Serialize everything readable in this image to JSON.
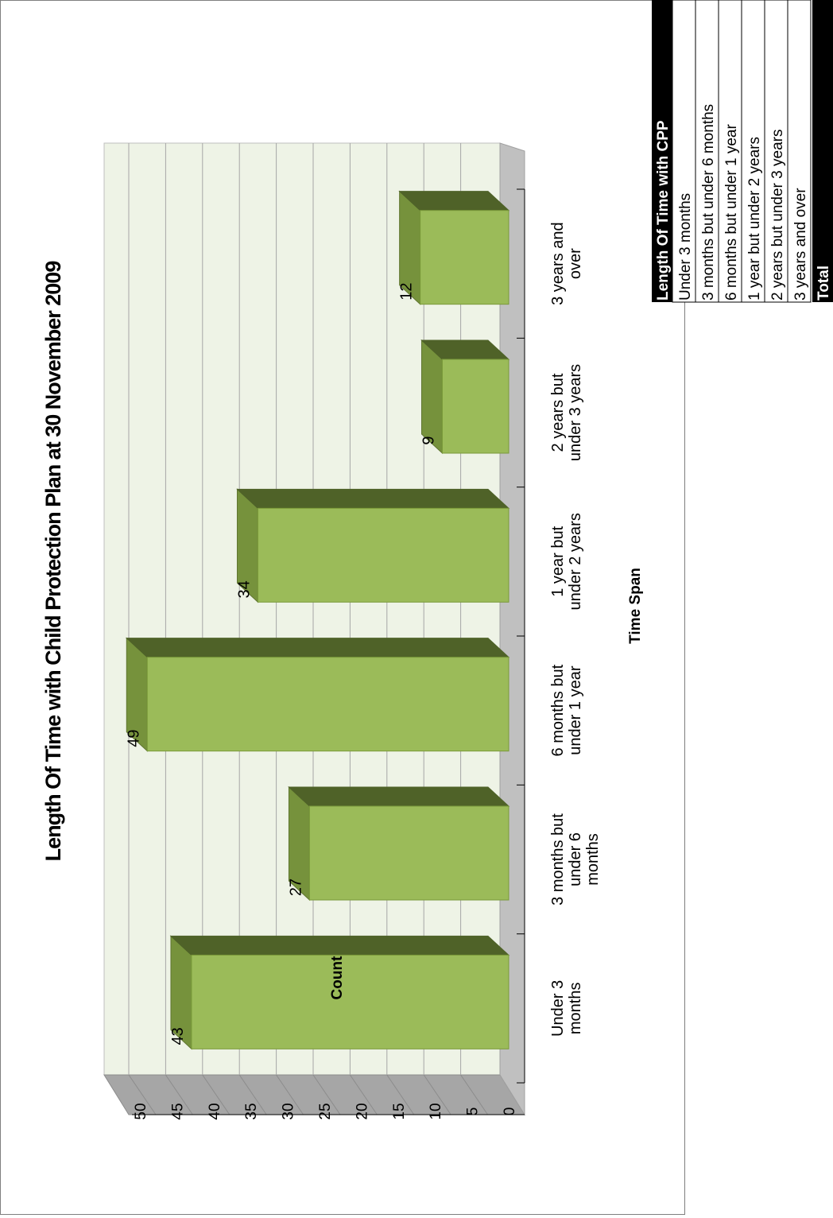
{
  "chart_data": {
    "type": "bar",
    "title": "Length Of Time with Child Protection Plan  at 30 November 2009",
    "xlabel": "Time Span",
    "ylabel": "Count",
    "categories": [
      [
        "Under 3",
        "months"
      ],
      [
        "3 months but",
        "under 6",
        "months"
      ],
      [
        "6 months but",
        "under 1 year"
      ],
      [
        "1 year but",
        "under 2 years"
      ],
      [
        "2 years but",
        "under 3 years"
      ],
      [
        "3 years and",
        "over"
      ]
    ],
    "values": [
      43,
      27,
      49,
      34,
      9,
      12
    ],
    "data_labels": [
      "43",
      "27",
      "49",
      "34",
      "9",
      "12"
    ],
    "ylim": [
      0,
      50
    ],
    "yticks": [
      "0",
      "5",
      "10",
      "15",
      "20",
      "25",
      "30",
      "35",
      "40",
      "45",
      "50"
    ],
    "grid": true,
    "orientation": "rotated 90° counter-clockwise",
    "colors": {
      "bar_front": "#9bbb59",
      "bar_top": "#76923c",
      "bar_side": "#4f6228",
      "wall": "#eef3e6",
      "floor": "#c0c0c0"
    }
  },
  "table": {
    "header": "Length Of Time with CPP",
    "rows": [
      "Under 3 months",
      "3 months but under 6 months",
      "6 months but under 1 year",
      "1 year but under 2 years",
      "2 years but under 3 years",
      "3 years and over"
    ],
    "total_label": "Total"
  }
}
